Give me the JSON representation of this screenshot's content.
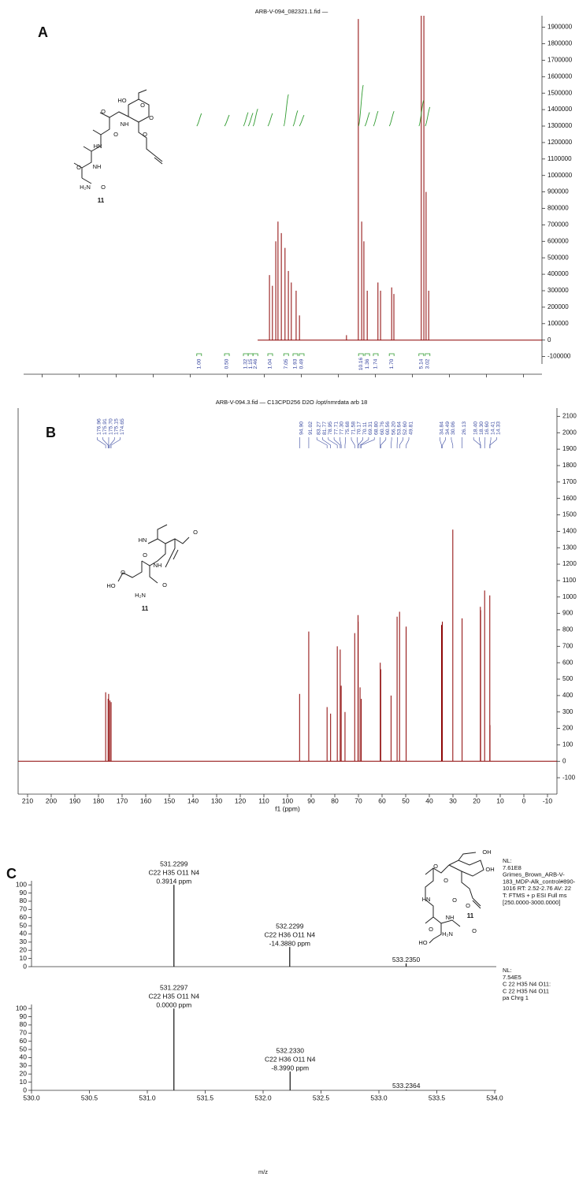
{
  "chart_data": [
    {
      "type": "nmr",
      "panel": "A",
      "title": "ARB-V-094_082321.1.fid —",
      "color": "#8b0000",
      "x": [
        5.86,
        5.78,
        5.69,
        5.63,
        5.54,
        5.44,
        5.35,
        5.27,
        5.14,
        5.05,
        3.78,
        3.46,
        3.37,
        3.31,
        3.22,
        2.93,
        2.86,
        2.56,
        2.5,
        1.76,
        1.69,
        1.63,
        1.56
      ],
      "values": [
        395000,
        330000,
        600000,
        720000,
        650000,
        560000,
        420000,
        350000,
        300000,
        150000,
        30000,
        1950000,
        720000,
        600000,
        300000,
        350000,
        300000,
        320000,
        280000,
        1970000,
        1970000,
        900000,
        300000
      ],
      "xlim": [
        12.5,
        -1.5
      ],
      "xticks": [
        12,
        11,
        10,
        9,
        8,
        7,
        6,
        5,
        4,
        3,
        2,
        1,
        0,
        -1
      ],
      "xtick_labels": false,
      "ylim": [
        -145000,
        1970000
      ],
      "yticks": [
        1900000,
        1800000,
        1700000,
        1600000,
        1500000,
        1400000,
        1300000,
        1200000,
        1100000,
        1000000,
        900000,
        800000,
        700000,
        600000,
        500000,
        400000,
        300000,
        200000,
        100000,
        0,
        -100000
      ],
      "integrals": {
        "color": "#2e9a2e",
        "label_color": "#2b3a9a",
        "x": [
          7.76,
          7.01,
          6.5,
          6.37,
          6.24,
          5.84,
          5.41,
          5.16,
          4.99,
          3.39,
          3.22,
          2.99,
          2.56,
          1.76,
          1.59
        ],
        "values": [
          1,
          0.5,
          1.32,
          1.15,
          2.46,
          1.04,
          7.05,
          1.93,
          0.49,
          10.16,
          1.36,
          1.74,
          1.7,
          5.14,
          3.02
        ],
        "value_labels": [
          "1.00",
          "0.50",
          "1.32",
          "1.15",
          "2.46",
          "1.04",
          "7.05",
          "1.93",
          "0.49",
          "10.16",
          "1.36",
          "1.74",
          "1.70",
          "5.14",
          "3.02"
        ]
      },
      "structure": {
        "labels": [
          "HO",
          "O",
          "O",
          "O",
          "NH",
          "O",
          "O",
          "HN",
          "O",
          "NH",
          "H₂N",
          "O"
        ],
        "compound": "11"
      }
    },
    {
      "type": "nmr",
      "panel": "B",
      "title": "ARB-V-094.3.fid — C13CPD256 D2O /opt/nmrdata arb 18",
      "color": "#8b0000",
      "peak_label_color": "#3a4aa0",
      "x": [
        176.96,
        175.91,
        175.7,
        175.15,
        174.65,
        94.9,
        91.02,
        83.27,
        81.77,
        78.95,
        77.71,
        77.3,
        75.68,
        71.58,
        70.17,
        70.11,
        69.31,
        68.8,
        60.76,
        60.56,
        56.2,
        53.64,
        52.6,
        49.81,
        34.84,
        34.49,
        30.06,
        26.13,
        18.4,
        18.3,
        16.6,
        14.41,
        14.33
      ],
      "x_labels": [
        "176.96",
        "175.91",
        "175.70",
        "175.15",
        "174.65",
        "94.90",
        "91.02",
        "83.27",
        "81.77",
        "78.95",
        "77.71",
        "77.30",
        "75.68",
        "71.58",
        "70.17",
        "70.11",
        "69.31",
        "68.80",
        "60.76",
        "60.56",
        "56.20",
        "53.64",
        "52.60",
        "49.81",
        "34.84",
        "34.49",
        "30.06",
        "26.13",
        "18.40",
        "18.30",
        "16.60",
        "14.41",
        "14.33"
      ],
      "values": [
        420,
        380,
        410,
        370,
        360,
        410,
        790,
        330,
        290,
        700,
        680,
        460,
        300,
        780,
        890,
        850,
        450,
        380,
        600,
        560,
        400,
        880,
        910,
        820,
        830,
        850,
        1410,
        870,
        940,
        920,
        1040,
        1010,
        220
      ],
      "xlim": [
        214,
        -14
      ],
      "xticks": [
        210,
        200,
        190,
        180,
        170,
        160,
        150,
        140,
        130,
        120,
        110,
        100,
        90,
        80,
        70,
        60,
        50,
        40,
        30,
        20,
        10,
        0,
        -10
      ],
      "xtick_labels": true,
      "xlabel": "f1 (ppm)",
      "ylim": [
        -200,
        2150
      ],
      "yticks": [
        2100,
        2000,
        1900,
        1800,
        1700,
        1600,
        1500,
        1400,
        1300,
        1200,
        1100,
        1000,
        900,
        800,
        700,
        600,
        500,
        400,
        300,
        200,
        100,
        0,
        -100
      ],
      "structure": {
        "labels": [
          "HN",
          "O",
          "O",
          "NH",
          "HO",
          "O",
          "H₂N",
          "O"
        ],
        "compound": "11"
      }
    },
    {
      "type": "mass",
      "panel": "C",
      "color": "#111111",
      "x": [
        531.2299,
        532.2299,
        533.235
      ],
      "x_labels": [
        "531.2299",
        "532.2299",
        "533.2350"
      ],
      "values": [
        100,
        24,
        4
      ],
      "formulas": [
        "C22 H35 O11 N4",
        "C22 H36 O11 N4",
        null
      ],
      "ppm_labels": [
        "0.3914 ppm",
        "-14.3880 ppm",
        null
      ],
      "xlim": [
        530,
        534
      ],
      "ylim": [
        0,
        105
      ],
      "yticks": [
        0,
        10,
        20,
        30,
        40,
        50,
        60,
        70,
        80,
        90,
        100
      ],
      "info": [
        "NL:",
        "7.61E8",
        "Grimes_Brown_ARB-V-",
        "183_MDP-Alk_control#890-",
        "1016  RT: 2.52-2.76  AV: 22",
        "T: FTMS + p ESI Full ms",
        "[250.0000-3000.0000]"
      ],
      "structure": {
        "labels": [
          "OH",
          "O",
          "OH",
          "O",
          "HN",
          "O",
          "O",
          "NH",
          "HO",
          "O",
          "H₂N",
          "O"
        ],
        "compound": "11"
      }
    },
    {
      "type": "mass",
      "color": "#111111",
      "x": [
        531.2297,
        532.233,
        533.2364
      ],
      "x_labels": [
        "531.2297",
        "532.2330",
        "533.2364"
      ],
      "values": [
        100,
        23,
        1
      ],
      "formulas": [
        "C22 H35 O11 N4",
        "C22 H36 O11 N4",
        null
      ],
      "ppm_labels": [
        "0.0000 ppm",
        "-8.3990 ppm",
        null
      ],
      "xlim": [
        530,
        534
      ],
      "ylim": [
        0,
        105
      ],
      "yticks": [
        0,
        10,
        20,
        30,
        40,
        50,
        60,
        70,
        80,
        90,
        100
      ],
      "xticks": [
        {
          "value": 530,
          "label": "530.0"
        },
        530.5,
        {
          "value": 531,
          "label": "531.0"
        },
        531.5,
        {
          "value": 532,
          "label": "532.0"
        },
        532.5,
        {
          "value": 533,
          "label": "533.0"
        },
        533.5,
        {
          "value": 534,
          "label": "534.0"
        }
      ],
      "xlabel": "m/z",
      "info": [
        "NL:",
        "7.54E5",
        "C 22 H35 N4 O11:",
        "C 22 H35 N4 O11",
        "pa Chrg 1"
      ]
    }
  ]
}
